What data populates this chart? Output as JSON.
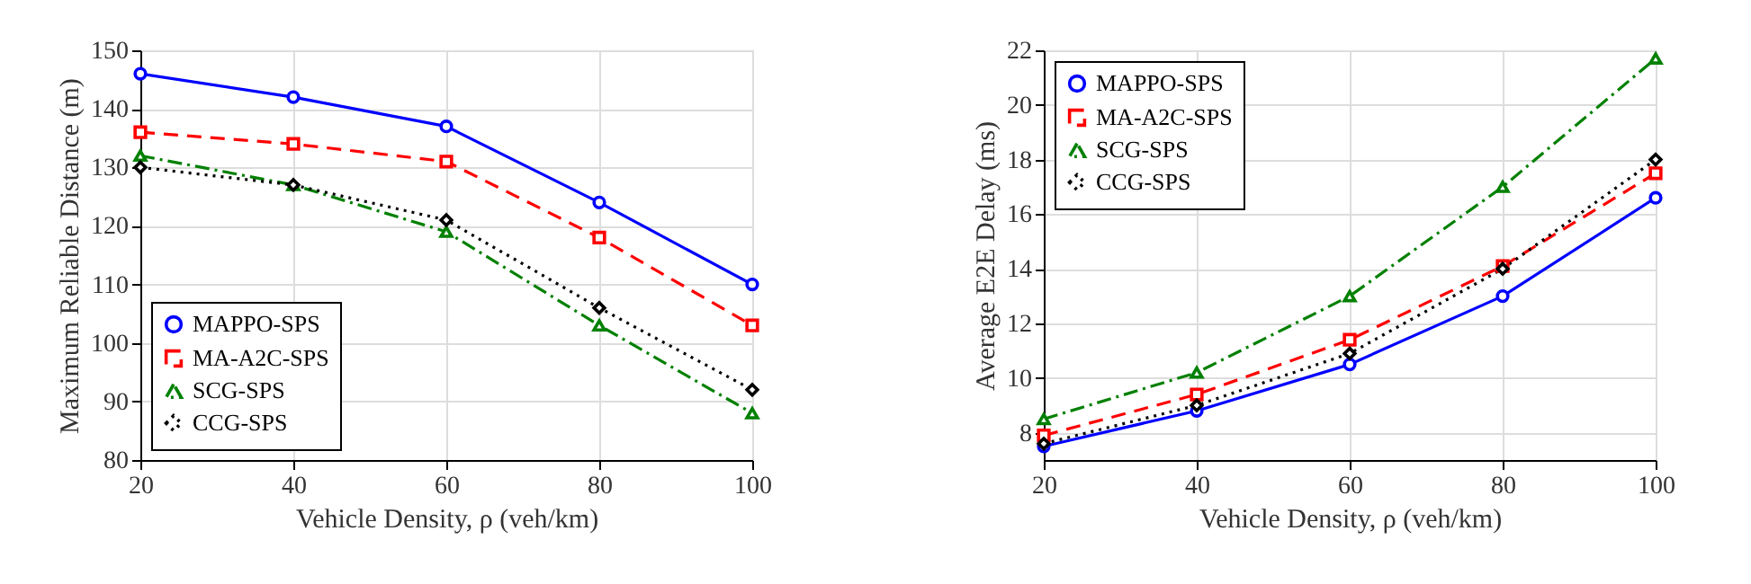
{
  "chart_data": [
    {
      "type": "line",
      "xlabel": "Vehicle Density, ρ (veh/km)",
      "ylabel": "Maximum Reliable Distance (m)",
      "x": [
        20,
        40,
        60,
        80,
        100
      ],
      "xlim": [
        20,
        100
      ],
      "xticks": [
        20,
        40,
        60,
        80,
        100
      ],
      "ylim": [
        80,
        150
      ],
      "yticks": [
        80,
        90,
        100,
        110,
        120,
        130,
        140,
        150
      ],
      "grid": true,
      "legend": "bottom left",
      "series": [
        {
          "name": "MAPPO-SPS",
          "color": "#0000ff",
          "marker": "circle",
          "line_style": "solid",
          "values": [
            146,
            142,
            137,
            124,
            110
          ]
        },
        {
          "name": "MA-A2C-SPS",
          "color": "#ff0000",
          "marker": "square",
          "line_style": "dashed",
          "values": [
            136,
            134,
            131,
            118,
            103
          ]
        },
        {
          "name": "SCG-SPS",
          "color": "#008000",
          "marker": "triangle",
          "line_style": "dashdot",
          "values": [
            132,
            127,
            119,
            103,
            88
          ]
        },
        {
          "name": "CCG-SPS",
          "color": "#000000",
          "marker": "diamond",
          "line_style": "dotted",
          "values": [
            130,
            127,
            121,
            106,
            92
          ]
        }
      ]
    },
    {
      "type": "line",
      "xlabel": "Vehicle Density, ρ (veh/km)",
      "ylabel": "Average E2E Delay (ms)",
      "x": [
        20,
        40,
        60,
        80,
        100
      ],
      "xlim": [
        20,
        100
      ],
      "xticks": [
        20,
        40,
        60,
        80,
        100
      ],
      "ylim": [
        7,
        22
      ],
      "yticks": [
        8,
        10,
        12,
        14,
        16,
        18,
        20,
        22
      ],
      "grid": true,
      "legend": "top left",
      "series": [
        {
          "name": "MAPPO-SPS",
          "color": "#0000ff",
          "marker": "circle",
          "line_style": "solid",
          "values": [
            7.5,
            8.8,
            10.5,
            13.0,
            16.6
          ]
        },
        {
          "name": "MA-A2C-SPS",
          "color": "#ff0000",
          "marker": "square",
          "line_style": "dashed",
          "values": [
            7.9,
            9.4,
            11.4,
            14.1,
            17.5
          ]
        },
        {
          "name": "SCG-SPS",
          "color": "#008000",
          "marker": "triangle",
          "line_style": "dashdot",
          "values": [
            8.5,
            10.2,
            13.0,
            17.0,
            21.7
          ]
        },
        {
          "name": "CCG-SPS",
          "color": "#000000",
          "marker": "diamond",
          "line_style": "dotted",
          "values": [
            7.6,
            9.0,
            10.9,
            14.0,
            18.0
          ]
        }
      ]
    }
  ]
}
